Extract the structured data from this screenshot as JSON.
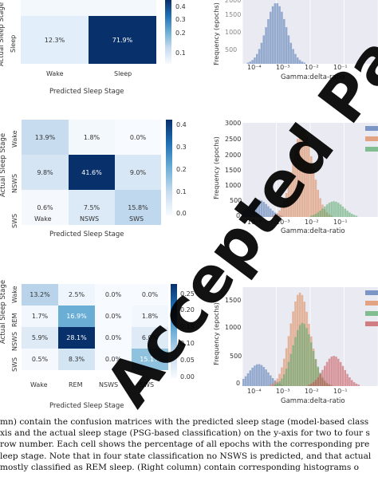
{
  "confusion": {
    "predicted_label": "Predicted Sleep Stage",
    "actual_label": "Actual Sleep Stage",
    "m2": {
      "cols": [
        "Wake",
        "Sleep"
      ],
      "rows": [
        "",
        "Sleep"
      ],
      "cells": [
        [
          "12.3%",
          "71.9%"
        ]
      ],
      "colorbar_ticks": [
        "0.4",
        "0.3",
        "0.2",
        "0.1"
      ]
    },
    "m3": {
      "cols": [
        "Wake",
        "NSWS",
        "SWS"
      ],
      "rows": [
        "Wake",
        "NSWS",
        "SWS"
      ],
      "cells": [
        [
          "13.9%",
          "1.8%",
          "0.0%"
        ],
        [
          "9.8%",
          "41.6%",
          "9.0%"
        ],
        [
          "0.6%",
          "7.5%",
          "15.8%"
        ]
      ],
      "colorbar_ticks": [
        "0.4",
        "0.3",
        "0.2",
        "0.1",
        "0.0"
      ]
    },
    "m4": {
      "cols": [
        "Wake",
        "REM",
        "NSWS",
        "SWS"
      ],
      "rows": [
        "Wake",
        "REM",
        "NSWS",
        "SWS"
      ],
      "cells": [
        [
          "13.2%",
          "2.5%",
          "0.0%",
          "0.0%"
        ],
        [
          "1.7%",
          "16.9%",
          "0.0%",
          "1.8%"
        ],
        [
          "5.9%",
          "28.1%",
          "0.0%",
          "6.0%"
        ],
        [
          "0.5%",
          "8.3%",
          "0.0%",
          "15.1%"
        ]
      ],
      "colorbar_ticks": [
        "0.25",
        "0.20",
        "0.15",
        "0.10",
        "0.05",
        "0.00"
      ]
    }
  },
  "histograms": {
    "xlabel": "Gamma:delta-ratio",
    "ylabel": "Frequency (epochs)",
    "x_ticks": [
      "10⁻⁴",
      "10⁻³",
      "10⁻²",
      "10⁻¹",
      "10⁰"
    ],
    "h1_y_ticks": [
      "2000",
      "1500",
      "1000",
      "500"
    ],
    "h2_y_ticks": [
      "3000",
      "2500",
      "2000",
      "1500",
      "1000",
      "500",
      "0"
    ],
    "h3_y_ticks": [
      "1500",
      "1000",
      "500",
      "0"
    ],
    "colors": {
      "wake": "#4c72b0",
      "rem": "#c44e52",
      "nsws": "#dd8452",
      "sws": "#55a868"
    }
  },
  "caption": {
    "lines": [
      "mn) contain the confusion matrices with the predicted sleep stage (model-based class",
      "xis and the actual sleep stage (PSG-based classification) on the y-axis for two to four s",
      "row number. Each cell shows the percentage of all epochs with the corresponding pre",
      "leep stage. Note that in four state classification no NSWS is predicted, and that actual",
      "mostly classified as REM sleep. (Right column) contain corresponding histograms o"
    ]
  },
  "watermark": "Accepted Paper",
  "chart_data": [
    {
      "type": "heatmap",
      "title": "",
      "xlabel": "Predicted Sleep Stage",
      "ylabel": "Actual Sleep Stage",
      "categories_x": [
        "Wake",
        "Sleep"
      ],
      "categories_y": [
        "Sleep"
      ],
      "values": [
        [
          12.3,
          71.9
        ]
      ],
      "colorbar_range": [
        0.05,
        0.45
      ]
    },
    {
      "type": "heatmap",
      "title": "",
      "xlabel": "Predicted Sleep Stage",
      "ylabel": "Actual Sleep Stage",
      "categories_x": [
        "Wake",
        "NSWS",
        "SWS"
      ],
      "categories_y": [
        "Wake",
        "NSWS",
        "SWS"
      ],
      "values": [
        [
          13.9,
          1.8,
          0.0
        ],
        [
          9.8,
          41.6,
          9.0
        ],
        [
          0.6,
          7.5,
          15.8
        ]
      ],
      "colorbar_range": [
        0.0,
        0.42
      ]
    },
    {
      "type": "heatmap",
      "title": "",
      "xlabel": "Predicted Sleep Stage",
      "ylabel": "Actual Sleep Stage",
      "categories_x": [
        "Wake",
        "REM",
        "NSWS",
        "SWS"
      ],
      "categories_y": [
        "Wake",
        "REM",
        "NSWS",
        "SWS"
      ],
      "values": [
        [
          13.2,
          2.5,
          0.0,
          0.0
        ],
        [
          1.7,
          16.9,
          0.0,
          1.8
        ],
        [
          5.9,
          28.1,
          0.0,
          6.0
        ],
        [
          0.5,
          8.3,
          0.0,
          15.1
        ]
      ],
      "colorbar_range": [
        0.0,
        0.28
      ]
    },
    {
      "type": "bar",
      "title": "",
      "xlabel": "Gamma:delta-ratio",
      "ylabel": "Frequency (epochs)",
      "x_scale": "log",
      "xlim": [
        0.0001,
        1
      ],
      "ylim": [
        0,
        2200
      ],
      "series": [
        {
          "peak_x": 0.001,
          "peak_y": 2100
        }
      ]
    },
    {
      "type": "bar",
      "title": "",
      "xlabel": "Gamma:delta-ratio",
      "ylabel": "Frequency (epochs)",
      "x_scale": "log",
      "xlim": [
        0.0001,
        1
      ],
      "ylim": [
        0,
        3000
      ],
      "series": [
        {
          "peak_x": 0.0003,
          "peak_y": 550
        },
        {
          "peak_x": 0.006,
          "peak_y": 2800
        },
        {
          "peak_x": 0.05,
          "peak_y": 500
        }
      ]
    },
    {
      "type": "bar",
      "title": "",
      "xlabel": "Gamma:delta-ratio",
      "ylabel": "Frequency (epochs)",
      "x_scale": "log",
      "xlim": [
        0.0001,
        1
      ],
      "ylim": [
        0,
        1800
      ],
      "series": [
        {
          "peak_x": 0.0003,
          "peak_y": 400
        },
        {
          "peak_x": 0.005,
          "peak_y": 1700
        },
        {
          "peak_x": 0.006,
          "peak_y": 1150
        },
        {
          "peak_x": 0.05,
          "peak_y": 550
        }
      ]
    }
  ]
}
